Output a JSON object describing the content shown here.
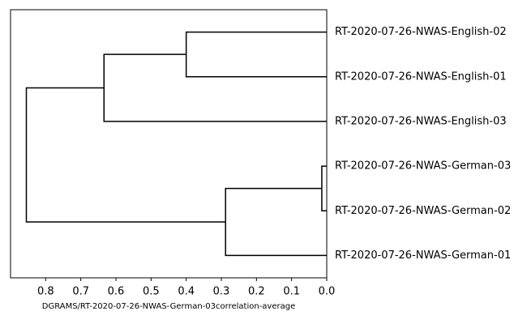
{
  "chart_data": {
    "type": "dendrogram",
    "leaves": [
      "RT-2020-07-26-NWAS-English-02",
      "RT-2020-07-26-NWAS-English-01",
      "RT-2020-07-26-NWAS-English-03",
      "RT-2020-07-26-NWAS-German-03",
      "RT-2020-07-26-NWAS-German-02",
      "RT-2020-07-26-NWAS-German-01"
    ],
    "merges": [
      {
        "children": [
          0,
          1
        ],
        "height": 0.4
      },
      {
        "children": [
          6,
          2
        ],
        "height": 0.634
      },
      {
        "children": [
          3,
          4
        ],
        "height": 0.014
      },
      {
        "children": [
          8,
          5
        ],
        "height": 0.288
      },
      {
        "children": [
          7,
          9
        ],
        "height": 0.855
      }
    ],
    "color": "#000000",
    "xlabel": "DGRAMS/RT-2020-07-26-NWAS-German-03correlation-average",
    "xlim": [
      0.9,
      0
    ],
    "xticks": [
      0.8,
      0.7,
      0.6,
      0.5,
      0.4,
      0.3,
      0.2,
      0.1,
      {
        "value": 0,
        "label": "0.0"
      }
    ]
  }
}
